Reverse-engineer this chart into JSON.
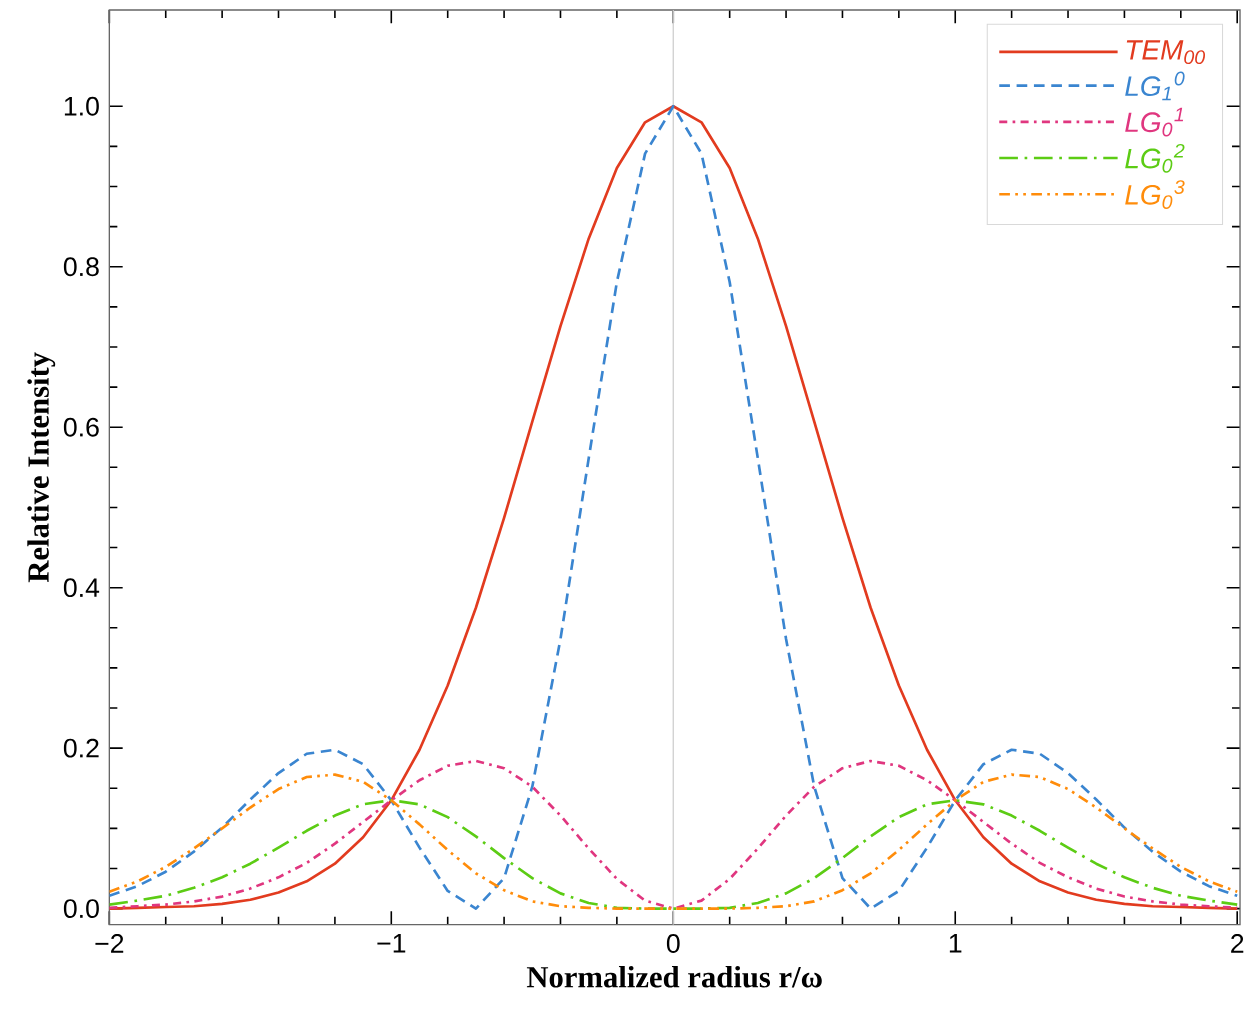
{
  "chart_data": {
    "type": "line",
    "xlabel": "Normalized radius r/ω",
    "ylabel": "Relative Intensity",
    "x": [
      -2.0,
      -1.9,
      -1.8,
      -1.7,
      -1.6,
      -1.5,
      -1.4,
      -1.3,
      -1.2,
      -1.1,
      -1.0,
      -0.9,
      -0.8,
      -0.7,
      -0.6,
      -0.5,
      -0.4,
      -0.3,
      -0.2,
      -0.1,
      0.0,
      0.1,
      0.2,
      0.3,
      0.4,
      0.5,
      0.6,
      0.7,
      0.8,
      0.9,
      1.0,
      1.1,
      1.2,
      1.3,
      1.4,
      1.5,
      1.6,
      1.7,
      1.8,
      1.9,
      2.0
    ],
    "series": [
      {
        "name": "TEM$_{00}$",
        "color": "#e23b1f",
        "line_style": "solid",
        "values": [
          0.0,
          0.001,
          0.002,
          0.003,
          0.006,
          0.011,
          0.02,
          0.034,
          0.056,
          0.089,
          0.135,
          0.198,
          0.278,
          0.375,
          0.487,
          0.607,
          0.726,
          0.835,
          0.923,
          0.98,
          1.0,
          0.98,
          0.923,
          0.835,
          0.726,
          0.607,
          0.487,
          0.375,
          0.278,
          0.198,
          0.135,
          0.089,
          0.056,
          0.034,
          0.02,
          0.011,
          0.006,
          0.003,
          0.002,
          0.001,
          0.0
        ]
      },
      {
        "name": "LG$_{1}$$^{0}$",
        "color": "#3a85d0",
        "line_style": "dashed",
        "values": [
          0.016,
          0.028,
          0.046,
          0.071,
          0.101,
          0.136,
          0.169,
          0.193,
          0.198,
          0.18,
          0.135,
          0.076,
          0.022,
          0.0,
          0.038,
          0.152,
          0.336,
          0.561,
          0.781,
          0.941,
          1.0,
          0.941,
          0.781,
          0.561,
          0.336,
          0.152,
          0.038,
          0.0,
          0.022,
          0.076,
          0.135,
          0.18,
          0.198,
          0.193,
          0.169,
          0.136,
          0.101,
          0.071,
          0.046,
          0.028,
          0.016
        ]
      },
      {
        "name": "LG$_{0}$$^{1}$",
        "color": "#e0367f",
        "line_style": "dashdot",
        "values": [
          0.001,
          0.003,
          0.005,
          0.009,
          0.015,
          0.025,
          0.039,
          0.057,
          0.081,
          0.108,
          0.135,
          0.16,
          0.178,
          0.184,
          0.175,
          0.152,
          0.116,
          0.075,
          0.037,
          0.01,
          0.0,
          0.01,
          0.037,
          0.075,
          0.116,
          0.152,
          0.175,
          0.184,
          0.178,
          0.16,
          0.135,
          0.108,
          0.081,
          0.057,
          0.039,
          0.025,
          0.015,
          0.009,
          0.005,
          0.003,
          0.001
        ]
      },
      {
        "name": "LG$_{0}$$^{2}$",
        "color": "#5ccc14",
        "line_style": "longdashdot",
        "values": [
          0.005,
          0.01,
          0.016,
          0.026,
          0.039,
          0.056,
          0.076,
          0.097,
          0.116,
          0.13,
          0.135,
          0.13,
          0.114,
          0.09,
          0.063,
          0.038,
          0.019,
          0.007,
          0.001,
          0.0,
          0.0,
          0.0,
          0.001,
          0.007,
          0.019,
          0.038,
          0.063,
          0.09,
          0.114,
          0.13,
          0.135,
          0.13,
          0.116,
          0.097,
          0.076,
          0.056,
          0.039,
          0.026,
          0.016,
          0.01,
          0.005
        ]
      },
      {
        "name": "LG$_{0}$$^{3}$",
        "color": "#ff8c0a",
        "line_style": "dashdotdot",
        "values": [
          0.021,
          0.034,
          0.052,
          0.075,
          0.1,
          0.126,
          0.149,
          0.164,
          0.167,
          0.158,
          0.135,
          0.105,
          0.073,
          0.044,
          0.023,
          0.009,
          0.003,
          0.001,
          0.0,
          0.0,
          0.0,
          0.0,
          0.0,
          0.001,
          0.003,
          0.009,
          0.023,
          0.044,
          0.073,
          0.105,
          0.135,
          0.158,
          0.167,
          0.164,
          0.149,
          0.126,
          0.1,
          0.075,
          0.052,
          0.034,
          0.021
        ]
      }
    ],
    "xlim": [
      -2.0,
      2.01
    ],
    "ylim": [
      -0.02,
      1.12
    ],
    "xticks": [
      {
        "value": -2,
        "label": "−2"
      },
      {
        "value": -1,
        "label": "−1"
      },
      0,
      1,
      2
    ],
    "yticks": [
      {
        "value": 0,
        "label": "0.0"
      },
      {
        "value": 0.2,
        "label": "0.2"
      },
      {
        "value": 0.4,
        "label": "0.4"
      },
      {
        "value": 0.6,
        "label": "0.6"
      },
      {
        "value": 0.8,
        "label": "0.8"
      },
      {
        "value": 1.0,
        "label": "1.0"
      }
    ],
    "ref_lines": [
      {
        "axis": "x",
        "value": 0,
        "color": "#d0d0d0"
      }
    ],
    "grid": false,
    "legend": "top right",
    "marker": "none"
  }
}
